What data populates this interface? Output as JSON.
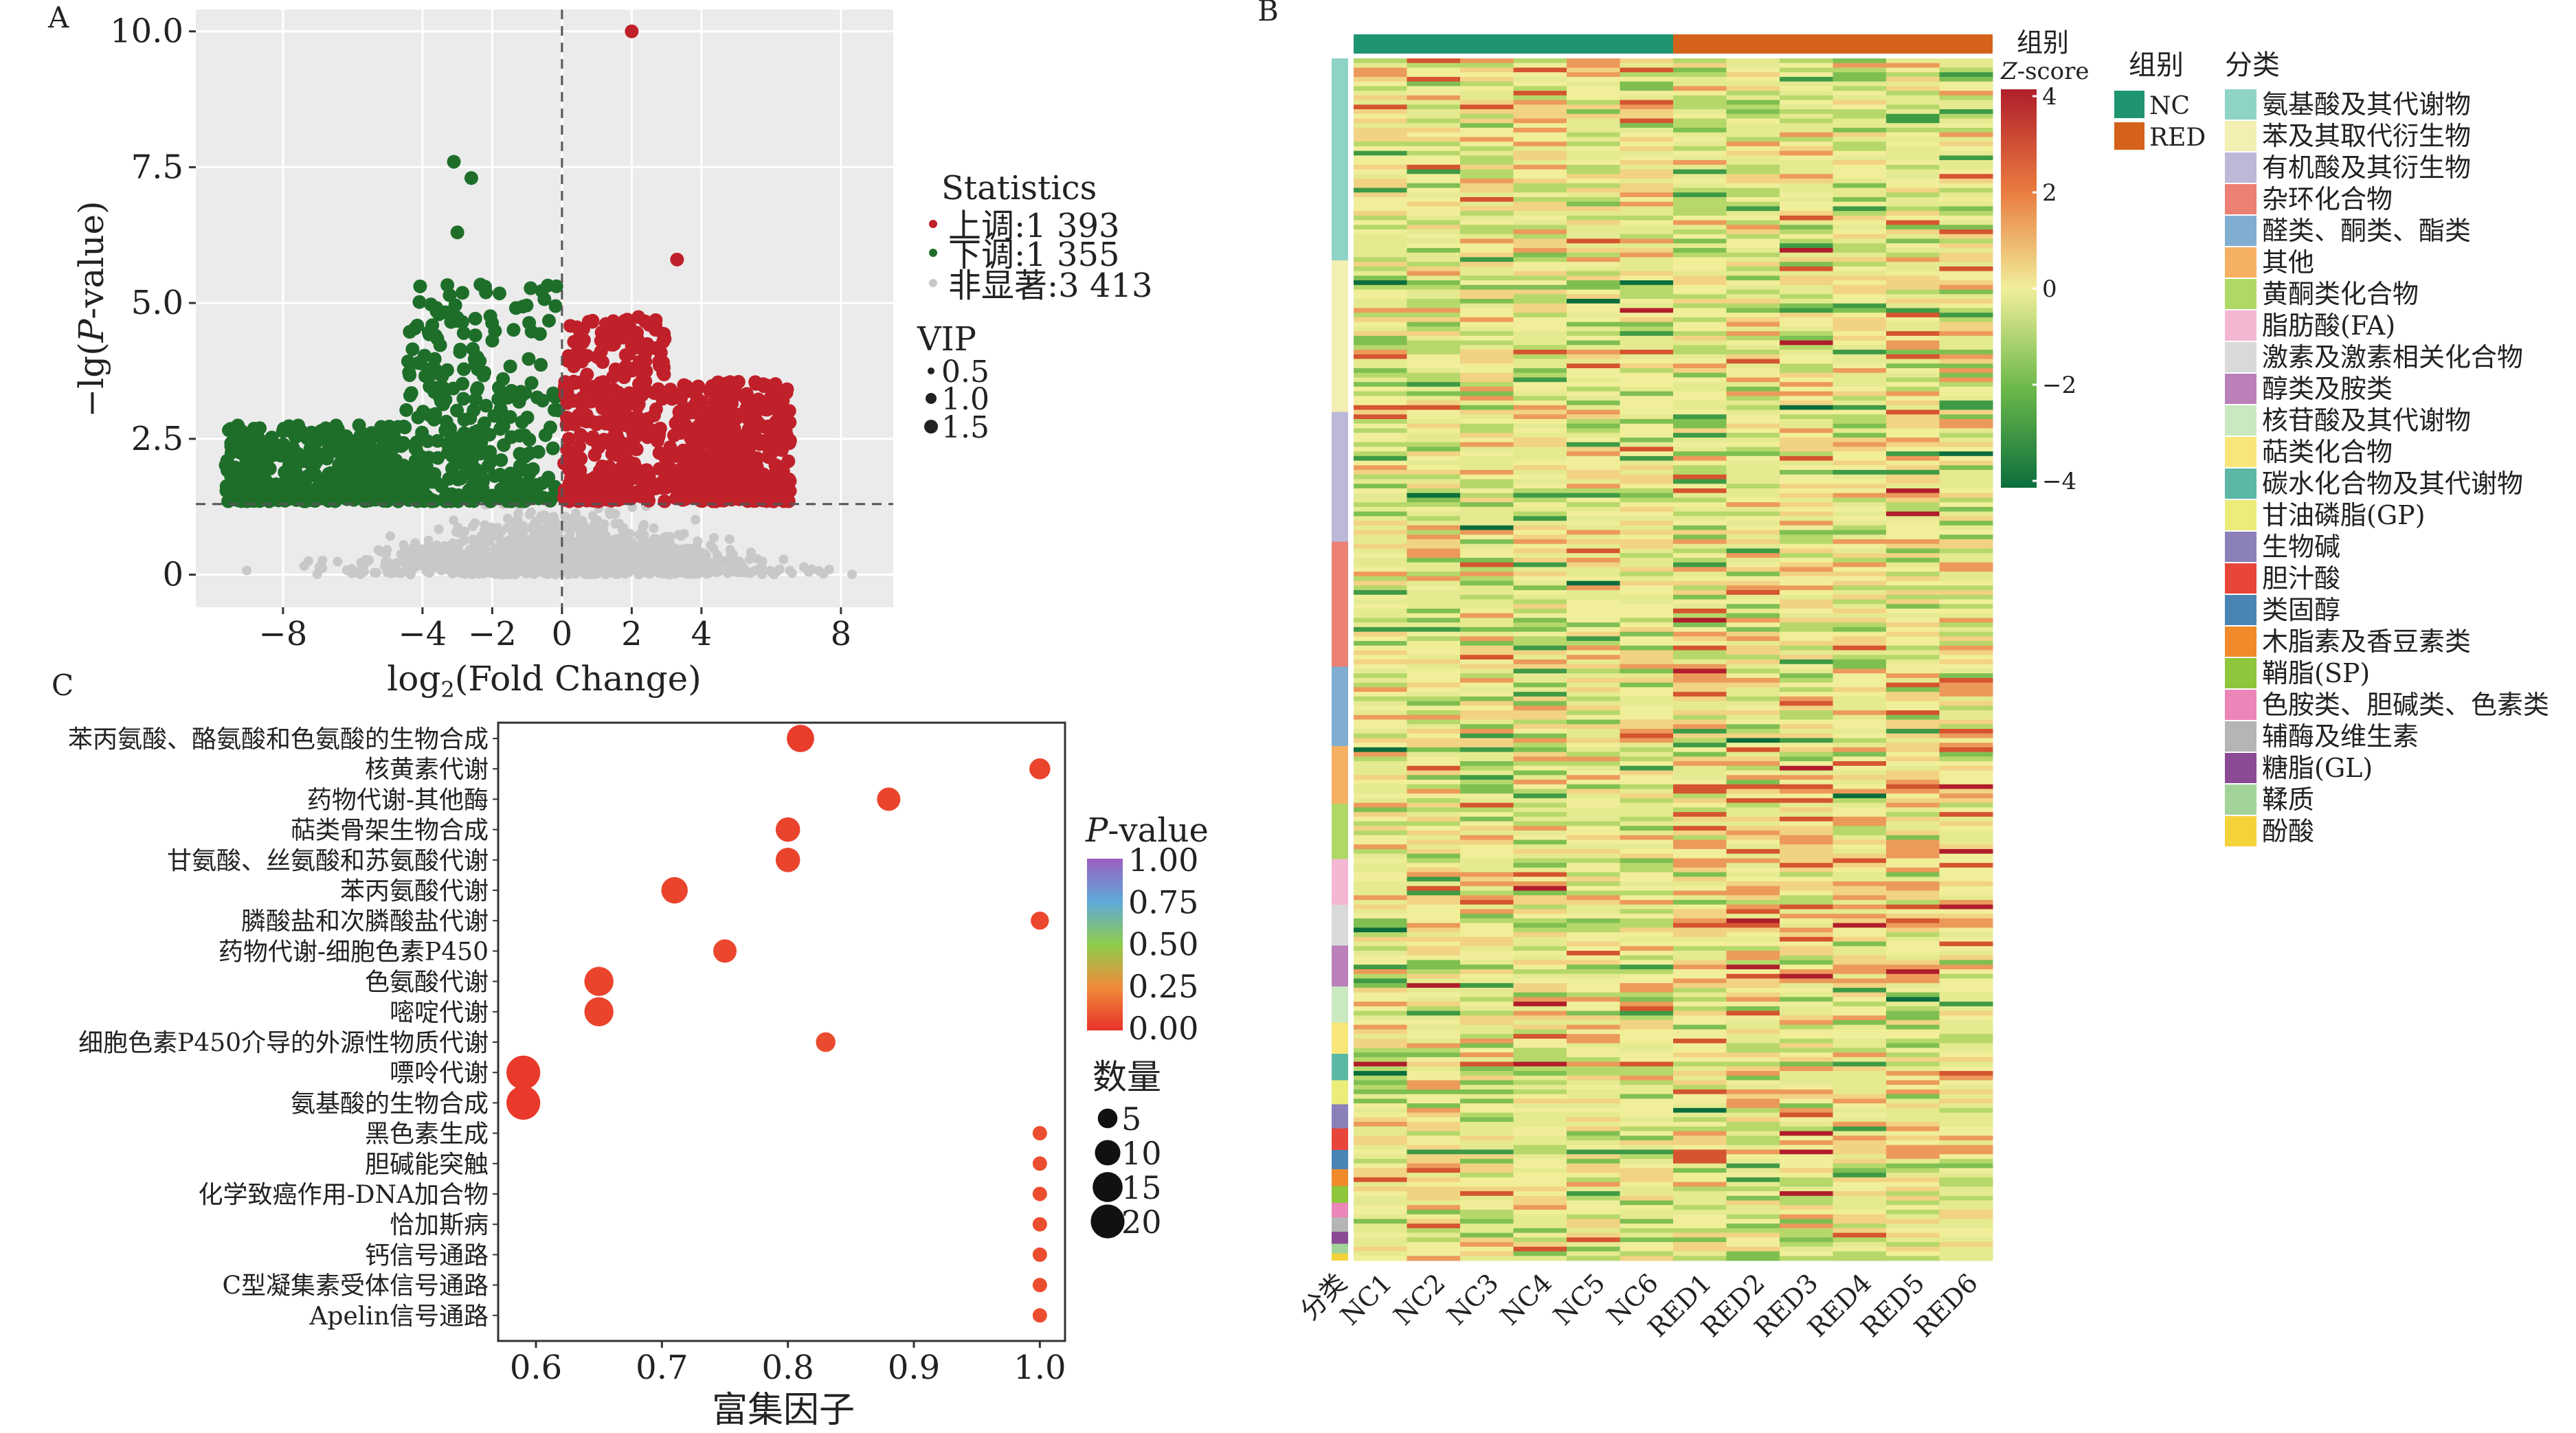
{
  "panel_labels": {
    "a": "A",
    "b": "B",
    "c": "C"
  },
  "colors": {
    "up": "#c0202a",
    "down": "#1e6e2a",
    "ns": "#c8c8c8",
    "nc": "#1f9470",
    "red": "#d4621a",
    "heat_low": "#0b6e3c",
    "heat_mid": "#f1ee9a",
    "heat_high": "#b01e2b",
    "pval_low": "#e8322a",
    "pval_mid": "#8fcd4a",
    "pval_high": "#9a5fc2"
  },
  "chart_data": [
    {
      "type": "scatter",
      "panel": "A",
      "xlabel": "log2(Fold Change)",
      "ylabel": "−lg(P-value)",
      "xlim": [
        -10.5,
        9.5
      ],
      "ylim": [
        -0.6,
        10.4
      ],
      "xticks": [
        "−8",
        "−4",
        "−2",
        "0",
        "2",
        "4",
        "8"
      ],
      "xtick_values": [
        -8,
        -4,
        -2,
        0,
        2,
        4,
        8
      ],
      "yticks": [
        "0",
        "2.5",
        "5.0",
        "7.5",
        "10.0"
      ],
      "ytick_values": [
        0,
        2.5,
        5.0,
        7.5,
        10.0
      ],
      "threshold_y": 1.3,
      "threshold_x": 0,
      "grid": true,
      "legend": {
        "title": "Statistics",
        "items": [
          {
            "label": "上调:1 393",
            "key": "up"
          },
          {
            "label": "下调:1 355",
            "key": "down"
          },
          {
            "label": "非显著:3 413",
            "key": "ns"
          }
        ],
        "vip_title": "VIP",
        "vip_items": [
          {
            "label": "0.5",
            "v": 0.5
          },
          {
            "label": "1.0",
            "v": 1.0
          },
          {
            "label": "1.5",
            "v": 1.5
          }
        ]
      },
      "series": [
        {
          "key": "up",
          "count": 1393
        },
        {
          "key": "down",
          "count": 1355
        },
        {
          "key": "ns",
          "count": 3413
        }
      ],
      "highlight_points": [
        {
          "x": 2.0,
          "y": 10.0,
          "key": "up"
        },
        {
          "x": 3.3,
          "y": 5.8,
          "key": "up"
        },
        {
          "x": -3.1,
          "y": 7.6,
          "key": "down"
        },
        {
          "x": -2.6,
          "y": 7.3,
          "key": "down"
        },
        {
          "x": -3.0,
          "y": 6.3,
          "key": "down"
        }
      ]
    },
    {
      "type": "heatmap",
      "panel": "B",
      "columns": [
        "NC1",
        "NC2",
        "NC3",
        "NC4",
        "NC5",
        "NC6",
        "RED1",
        "RED2",
        "RED3",
        "RED4",
        "RED5",
        "RED6"
      ],
      "class_column_label": "分类",
      "group_label": "组别",
      "zscore_label": "Z-score",
      "zscore_ticks": [
        "4",
        "2",
        "0",
        "−2",
        "−4"
      ],
      "zscore_tick_values": [
        4,
        2,
        0,
        -2,
        -4
      ],
      "group_legend": {
        "title": "组别",
        "items": [
          {
            "label": "NC",
            "key": "nc"
          },
          {
            "label": "RED",
            "key": "red"
          }
        ]
      },
      "class_legend": {
        "title": "分类",
        "items": [
          {
            "label": "氨基酸及其代谢物",
            "color": "#8fd3c7"
          },
          {
            "label": "苯及其取代衍生物",
            "color": "#f3efb3"
          },
          {
            "label": "有机酸及其衍生物",
            "color": "#bcb8d8"
          },
          {
            "label": "杂环化合物",
            "color": "#ec8073"
          },
          {
            "label": "醛类、酮类、酯类",
            "color": "#80aed1"
          },
          {
            "label": "其他",
            "color": "#f5b063"
          },
          {
            "label": "黄酮类化合物",
            "color": "#b0d865"
          },
          {
            "label": "脂肪酸(FA)",
            "color": "#f4b7d2"
          },
          {
            "label": "激素及激素相关化合物",
            "color": "#d9d9d9"
          },
          {
            "label": "醇类及胺类",
            "color": "#bb80ba"
          },
          {
            "label": "核苷酸及其代谢物",
            "color": "#c9e9c1"
          },
          {
            "label": "萜类化合物",
            "color": "#f9e679"
          },
          {
            "label": "碳水化合物及其代谢物",
            "color": "#5cb8a4"
          },
          {
            "label": "甘油磷脂(GP)",
            "color": "#ecec78"
          },
          {
            "label": "生物碱",
            "color": "#8b80b8"
          },
          {
            "label": "胆汁酸",
            "color": "#e8463a"
          },
          {
            "label": "类固醇",
            "color": "#4a84b5"
          },
          {
            "label": "木脂素及香豆素类",
            "color": "#f08a2a"
          },
          {
            "label": "鞘脂(SP)",
            "color": "#8ec63c"
          },
          {
            "label": "色胺类、胆碱类、色素类",
            "color": "#ec86b8"
          },
          {
            "label": "辅酶及维生素",
            "color": "#b5b5b5"
          },
          {
            "label": "糖脂(GL)",
            "color": "#8a4b94"
          },
          {
            "label": "鞣质",
            "color": "#a2d49a"
          },
          {
            "label": "酚酸",
            "color": "#f4d23a"
          }
        ]
      },
      "class_proportions": [
        0.168,
        0.126,
        0.108,
        0.104,
        0.066,
        0.048,
        0.046,
        0.038,
        0.034,
        0.034,
        0.03,
        0.026,
        0.022,
        0.02,
        0.02,
        0.018,
        0.016,
        0.014,
        0.014,
        0.012,
        0.012,
        0.01,
        0.008,
        0.006
      ]
    },
    {
      "type": "scatter",
      "panel": "C",
      "subtype": "bubble",
      "xlabel": "富集因子",
      "xlim": [
        0.57,
        1.02
      ],
      "xticks": [
        "0.6",
        "0.7",
        "0.8",
        "0.9",
        "1.0"
      ],
      "xtick_values": [
        0.6,
        0.7,
        0.8,
        0.9,
        1.0
      ],
      "pvalue_legend": {
        "title": "P-value",
        "ticks": [
          "1.00",
          "0.75",
          "0.50",
          "0.25",
          "0.00"
        ],
        "tick_values": [
          1.0,
          0.75,
          0.5,
          0.25,
          0.0
        ]
      },
      "size_legend": {
        "title": "数量",
        "items": [
          {
            "label": "5",
            "v": 5
          },
          {
            "label": "10",
            "v": 10
          },
          {
            "label": "15",
            "v": 15
          },
          {
            "label": "20",
            "v": 20
          }
        ]
      },
      "pathways": [
        {
          "name": "苯丙氨酸、酪氨酸和色氨酸的生物合成",
          "x": 0.81,
          "count": 12,
          "p": 0.03
        },
        {
          "name": "核黄素代谢",
          "x": 1.0,
          "count": 6,
          "p": 0.05
        },
        {
          "name": "药物代谢-其他酶",
          "x": 0.88,
          "count": 8,
          "p": 0.05
        },
        {
          "name": "萜类骨架生物合成",
          "x": 0.8,
          "count": 9,
          "p": 0.05
        },
        {
          "name": "甘氨酸、丝氨酸和苏氨酸代谢",
          "x": 0.8,
          "count": 9,
          "p": 0.05
        },
        {
          "name": "苯丙氨酸代谢",
          "x": 0.71,
          "count": 11,
          "p": 0.05
        },
        {
          "name": "膦酸盐和次膦酸盐代谢",
          "x": 1.0,
          "count": 4,
          "p": 0.06
        },
        {
          "name": "药物代谢-细胞色素P450",
          "x": 0.75,
          "count": 8,
          "p": 0.06
        },
        {
          "name": "色氨酸代谢",
          "x": 0.65,
          "count": 14,
          "p": 0.05
        },
        {
          "name": "嘧啶代谢",
          "x": 0.65,
          "count": 14,
          "p": 0.05
        },
        {
          "name": "细胞色素P450介导的外源性物质代谢",
          "x": 0.83,
          "count": 5,
          "p": 0.07
        },
        {
          "name": "嘌呤代谢",
          "x": 0.59,
          "count": 20,
          "p": 0.02
        },
        {
          "name": "氨基酸的生物合成",
          "x": 0.59,
          "count": 20,
          "p": 0.02
        },
        {
          "name": "黑色素生成",
          "x": 1.0,
          "count": 2,
          "p": 0.08
        },
        {
          "name": "胆碱能突触",
          "x": 1.0,
          "count": 2,
          "p": 0.08
        },
        {
          "name": "化学致癌作用-DNA加合物",
          "x": 1.0,
          "count": 2,
          "p": 0.08
        },
        {
          "name": "恰加斯病",
          "x": 1.0,
          "count": 2,
          "p": 0.08
        },
        {
          "name": "钙信号通路",
          "x": 1.0,
          "count": 2,
          "p": 0.08
        },
        {
          "name": "C型凝集素受体信号通路",
          "x": 1.0,
          "count": 2,
          "p": 0.08
        },
        {
          "name": "Apelin信号通路",
          "x": 1.0,
          "count": 2,
          "p": 0.08
        }
      ]
    }
  ]
}
